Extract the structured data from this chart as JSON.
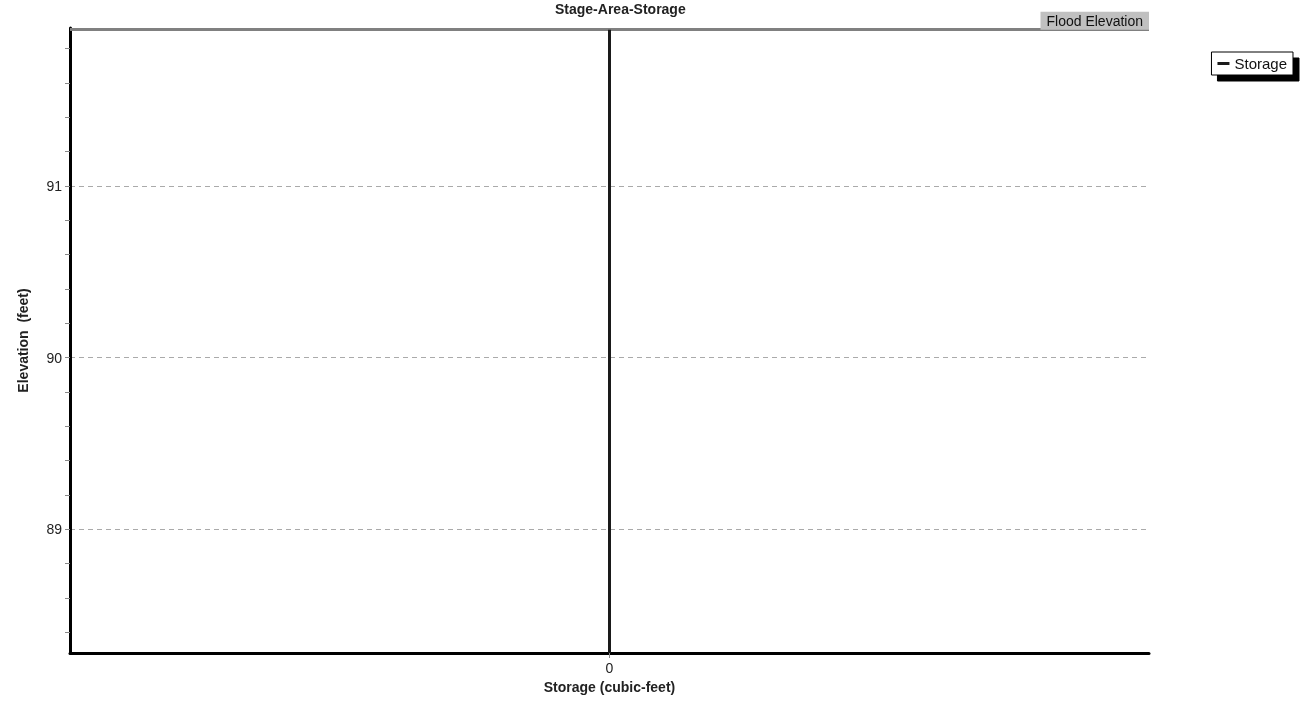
{
  "chart_data": {
    "type": "line",
    "title": "Stage-Area-Storage",
    "xlabel": "Storage (cubic-feet)",
    "ylabel": "Elevation  (feet)",
    "categories": [
      "0"
    ],
    "series": [
      {
        "name": "Storage",
        "color": "#1a1a1a",
        "x": [
          "0",
          "0"
        ],
        "values": [
          88.28,
          91.91
        ]
      }
    ],
    "ylim": [
      88.28,
      91.92
    ],
    "yticks": [
      {
        "value": 88.4,
        "label": null
      },
      {
        "value": 88.6,
        "label": null
      },
      {
        "value": 88.8,
        "label": null
      },
      {
        "value": 89,
        "label": "89"
      },
      {
        "value": 89.2,
        "label": null
      },
      {
        "value": 89.4,
        "label": null
      },
      {
        "value": 89.6,
        "label": null
      },
      {
        "value": 89.8,
        "label": null
      },
      {
        "value": 90,
        "label": "90"
      },
      {
        "value": 90.2,
        "label": null
      },
      {
        "value": 90.4,
        "label": null
      },
      {
        "value": 90.6,
        "label": null
      },
      {
        "value": 90.8,
        "label": null
      },
      {
        "value": 91,
        "label": "91"
      },
      {
        "value": 91.2,
        "label": null
      },
      {
        "value": 91.4,
        "label": null
      },
      {
        "value": 91.6,
        "label": null
      },
      {
        "value": 91.8,
        "label": null
      }
    ],
    "ref_lines": [
      {
        "axis": "y",
        "value": 91.91,
        "label": "Flood Elevation",
        "color": "#808080"
      }
    ],
    "grid": "y",
    "legend": "top right",
    "marker": "none",
    "line_style": "solid"
  }
}
